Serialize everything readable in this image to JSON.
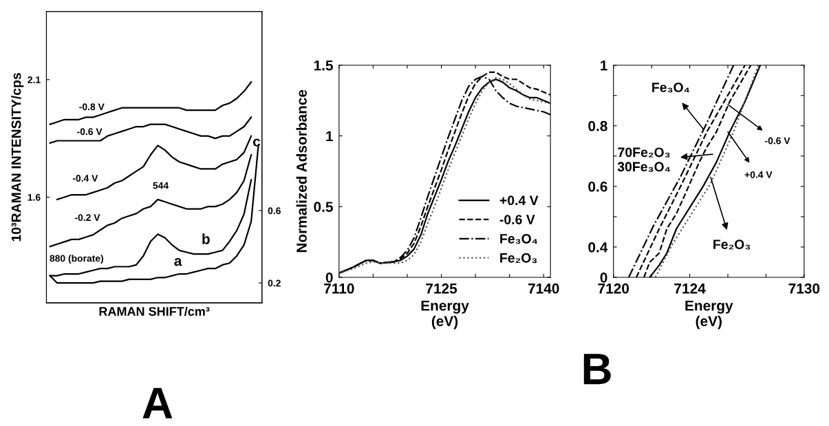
{
  "chart_data": [
    {
      "type": "line",
      "ylabel": "10³RAMAN INTENSITY/cps",
      "xlabel": "RAMAN SHIFT/cm³",
      "categories": [
        null,
        null,
        null,
        null,
        null,
        null,
        null,
        null,
        null,
        null,
        null,
        null,
        null,
        null,
        null,
        null,
        null,
        null,
        null,
        null,
        null,
        null,
        null,
        null,
        null,
        null,
        null,
        null,
        null,
        null
      ],
      "series": [
        {
          "name": "-0.8 V",
          "color": "#000000",
          "values": [
            1.91,
            1.92,
            1.93,
            1.93,
            1.93,
            1.94,
            1.94,
            1.95,
            1.96,
            1.97,
            1.98,
            1.98,
            1.98,
            1.98,
            1.98,
            1.98,
            1.98,
            1.98,
            1.98,
            1.97,
            1.97,
            1.97,
            1.97,
            1.97,
            1.99,
            2.0,
            2.02,
            2.05,
            2.09,
            null
          ]
        },
        {
          "name": "-0.6 V",
          "color": "#000000",
          "values": [
            1.83,
            1.84,
            1.84,
            1.84,
            1.84,
            1.84,
            1.84,
            1.84,
            1.86,
            1.87,
            1.88,
            1.89,
            1.9,
            1.9,
            1.91,
            1.91,
            1.91,
            1.9,
            1.89,
            1.88,
            1.87,
            1.86,
            1.86,
            1.85,
            1.86,
            1.86,
            1.88,
            1.9,
            1.94,
            null
          ]
        },
        {
          "name": "-0.4 V",
          "color": "#000000",
          "values": [
            null,
            1.59,
            1.6,
            1.61,
            1.61,
            1.61,
            1.62,
            1.63,
            1.64,
            1.66,
            1.67,
            1.69,
            1.71,
            1.73,
            1.78,
            1.82,
            1.8,
            1.77,
            1.75,
            1.74,
            1.73,
            1.72,
            1.72,
            1.72,
            1.74,
            1.75,
            1.76,
            1.79,
            1.86,
            null
          ]
        },
        {
          "name": "-0.2 V",
          "color": "#000000",
          "values": [
            1.39,
            1.4,
            1.41,
            1.42,
            1.42,
            1.43,
            1.44,
            1.46,
            1.48,
            1.49,
            1.51,
            1.52,
            1.53,
            1.55,
            1.56,
            1.59,
            1.58,
            1.57,
            1.56,
            1.55,
            1.55,
            1.55,
            1.56,
            1.56,
            1.57,
            1.59,
            1.62,
            1.67,
            1.78,
            null
          ]
        },
        {
          "name": "b",
          "color": "#000000",
          "axis": "y2",
          "values": [
            0.24,
            0.24,
            0.25,
            0.25,
            0.25,
            0.26,
            0.27,
            0.28,
            0.28,
            0.29,
            0.29,
            0.29,
            0.3,
            0.35,
            0.43,
            0.47,
            0.45,
            0.41,
            0.38,
            0.37,
            0.36,
            0.36,
            0.36,
            0.37,
            0.38,
            0.43,
            0.49,
            0.58,
            0.77,
            null
          ]
        },
        {
          "name": "a",
          "color": "#000000",
          "axis": "y2",
          "values": [
            0.24,
            0.2,
            0.2,
            0.2,
            0.2,
            0.2,
            0.2,
            0.21,
            0.21,
            0.21,
            0.21,
            0.22,
            0.22,
            0.22,
            0.22,
            0.23,
            0.23,
            0.24,
            0.25,
            0.25,
            0.26,
            0.27,
            0.28,
            0.28,
            0.3,
            0.31,
            0.35,
            0.41,
            0.54,
            0.96
          ]
        }
      ],
      "ylim": [
        1.15,
        2.39
      ],
      "yticks": [
        2.1,
        1.6
      ],
      "y2lim": [
        0.09,
        1.7
      ],
      "y2ticks": [
        0.6,
        0.2
      ],
      "annotations": [
        "544",
        "880 (borate)",
        "c",
        "A"
      ],
      "grid": false,
      "legend": false
    },
    {
      "type": "line",
      "ylabel": "Normalized Adsorbance",
      "xlabel": "Energy\n(eV)",
      "series": [
        {
          "name": "+0.4 V",
          "color": "#000000",
          "line_style": "solid",
          "x": [
            7110,
            7112,
            7114,
            7115,
            7116,
            7118,
            7119,
            7120,
            7121,
            7122,
            7123,
            7124,
            7125,
            7126,
            7127,
            7128,
            7129,
            7130,
            7131,
            7132,
            7133,
            7134,
            7135,
            7136,
            7137,
            7138,
            7139,
            7140,
            7141
          ],
          "values": [
            0.03,
            0.07,
            0.12,
            0.12,
            0.1,
            0.11,
            0.12,
            0.15,
            0.2,
            0.3,
            0.45,
            0.57,
            0.69,
            0.82,
            0.93,
            1.05,
            1.17,
            1.27,
            1.34,
            1.38,
            1.4,
            1.38,
            1.34,
            1.32,
            1.29,
            1.27,
            1.27,
            1.25,
            1.23
          ]
        },
        {
          "name": "-0.6 V",
          "color": "#000000",
          "line_style": "dashed",
          "x": [
            7110,
            7112,
            7114,
            7115,
            7116,
            7118,
            7119,
            7120,
            7121,
            7122,
            7123,
            7124,
            7125,
            7126,
            7127,
            7128,
            7129,
            7130,
            7131,
            7132,
            7133,
            7134,
            7135,
            7136,
            7137,
            7138,
            7139,
            7140,
            7141
          ],
          "values": [
            0.03,
            0.07,
            0.12,
            0.12,
            0.1,
            0.11,
            0.13,
            0.17,
            0.24,
            0.36,
            0.5,
            0.63,
            0.76,
            0.9,
            1.03,
            1.16,
            1.28,
            1.37,
            1.42,
            1.45,
            1.45,
            1.42,
            1.4,
            1.4,
            1.37,
            1.34,
            1.33,
            1.31,
            1.29
          ]
        },
        {
          "name": "Fe₃O₄",
          "color": "#000000",
          "line_style": "dashdot",
          "x": [
            7110,
            7112,
            7114,
            7115,
            7116,
            7118,
            7119,
            7120,
            7121,
            7122,
            7123,
            7124,
            7125,
            7126,
            7127,
            7128,
            7129,
            7130,
            7131,
            7132,
            7133,
            7134,
            7135,
            7136,
            7137,
            7138,
            7139,
            7140,
            7141
          ],
          "values": [
            0.03,
            0.07,
            0.12,
            0.12,
            0.1,
            0.11,
            0.14,
            0.19,
            0.28,
            0.42,
            0.57,
            0.71,
            0.85,
            0.99,
            1.12,
            1.25,
            1.35,
            1.4,
            1.42,
            1.4,
            1.32,
            1.27,
            1.23,
            1.21,
            1.2,
            1.19,
            1.18,
            1.17,
            1.15
          ]
        },
        {
          "name": "Fe₂O₃",
          "color": "#555555",
          "line_style": "dotted",
          "x": [
            7110,
            7112,
            7114,
            7115,
            7116,
            7118,
            7119,
            7120,
            7121,
            7122,
            7123,
            7124,
            7125,
            7126,
            7127,
            7128,
            7129,
            7130,
            7131,
            7132,
            7133,
            7134,
            7135,
            7136,
            7137,
            7138,
            7139,
            7140,
            7141
          ],
          "values": [
            0.03,
            0.06,
            0.1,
            0.11,
            0.1,
            0.1,
            0.1,
            0.12,
            0.16,
            0.25,
            0.38,
            0.5,
            0.63,
            0.76,
            0.88,
            1.0,
            1.12,
            1.23,
            1.32,
            1.38,
            1.41,
            1.4,
            1.37,
            1.33,
            1.29,
            1.26,
            1.25,
            1.24,
            1.23
          ]
        }
      ],
      "xlim": [
        7110,
        7141
      ],
      "xticks": [
        7110,
        {
          "value": 7115,
          "label": null
        },
        {
          "value": 7120,
          "label": null
        },
        7125,
        {
          "value": 7130,
          "label": null
        },
        {
          "value": 7135,
          "label": null
        },
        7140
      ],
      "ylim": [
        0,
        1.5
      ],
      "yticks": [
        0,
        0.5,
        1,
        1.5
      ],
      "legend": "bottom right",
      "grid": false,
      "annotations": [
        "B"
      ]
    },
    {
      "type": "line",
      "xlabel": "Energy\n(eV)",
      "series": [
        {
          "color": "#000000",
          "line_style": "dashdot",
          "x": [
            7120.8,
            7122.1,
            7123.5,
            7124.9,
            7126.3
          ],
          "values": [
            0.3,
            0.47,
            0.63,
            0.81,
            1.0
          ]
        },
        {
          "color": "#000000",
          "line_style": "dashed",
          "x": [
            7121.2,
            7122.4,
            7123.6,
            7124.9,
            7126.9
          ],
          "values": [
            0.3,
            0.46,
            0.61,
            0.78,
            1.0
          ]
        },
        {
          "color": "#000000",
          "line_style": "dashed",
          "x": [
            7121.6,
            7121.9,
            7122.4,
            7122.8,
            7123.3,
            7123.8,
            7124.5,
            7124.9,
            7125.4,
            7126.1,
            7127.2
          ],
          "values": [
            0.3,
            0.35,
            0.38,
            0.46,
            0.51,
            0.58,
            0.68,
            0.73,
            0.78,
            0.88,
            1.0
          ]
        },
        {
          "color": "#000000",
          "line_style": "solid",
          "x": [
            7121.9,
            7122.4,
            7122.8,
            7123.3,
            7124.0,
            7124.7,
            7125.4,
            7126.1,
            7126.9,
            7127.7
          ],
          "values": [
            0.3,
            0.34,
            0.38,
            0.46,
            0.53,
            0.6,
            0.68,
            0.78,
            0.88,
            1.0
          ]
        },
        {
          "color": "#555555",
          "line_style": "dotted",
          "x": [
            7122.2,
            7123.1,
            7124.0,
            7125.1,
            7126.3,
            7127.6
          ],
          "values": [
            0.3,
            0.41,
            0.5,
            0.61,
            0.78,
            1.0
          ]
        }
      ],
      "xlim": [
        7120,
        7130
      ],
      "xticks": [
        7120,
        {
          "value": 7122,
          "label": null
        },
        7124,
        {
          "value": 7126,
          "label": null
        },
        {
          "value": 7128,
          "label": null
        },
        7130
      ],
      "ylim": [
        0.3,
        1
      ],
      "yticks": [
        {
          "value": 0.3,
          "label": "0"
        },
        0.4,
        {
          "value": 0.5,
          "label": null
        },
        0.6,
        {
          "value": 0.7,
          "label": null
        },
        0.8,
        {
          "value": 0.9,
          "label": null
        },
        1
      ],
      "annotations": [
        {
          "text": "Fe₃O₄",
          "x": 7124.7,
          "y": 0.79
        },
        "70Fe₂O₃\n30Fe₃O₄",
        {
          "text": "-0.6 V",
          "x": 7126.0,
          "y": 0.87
        },
        {
          "text": "+0.4 V",
          "x": 7126.0,
          "y": 0.78
        },
        {
          "text": "Fe₂O₃",
          "x": 7125.1,
          "y": 0.63
        }
      ],
      "legend": false,
      "grid": false
    }
  ]
}
